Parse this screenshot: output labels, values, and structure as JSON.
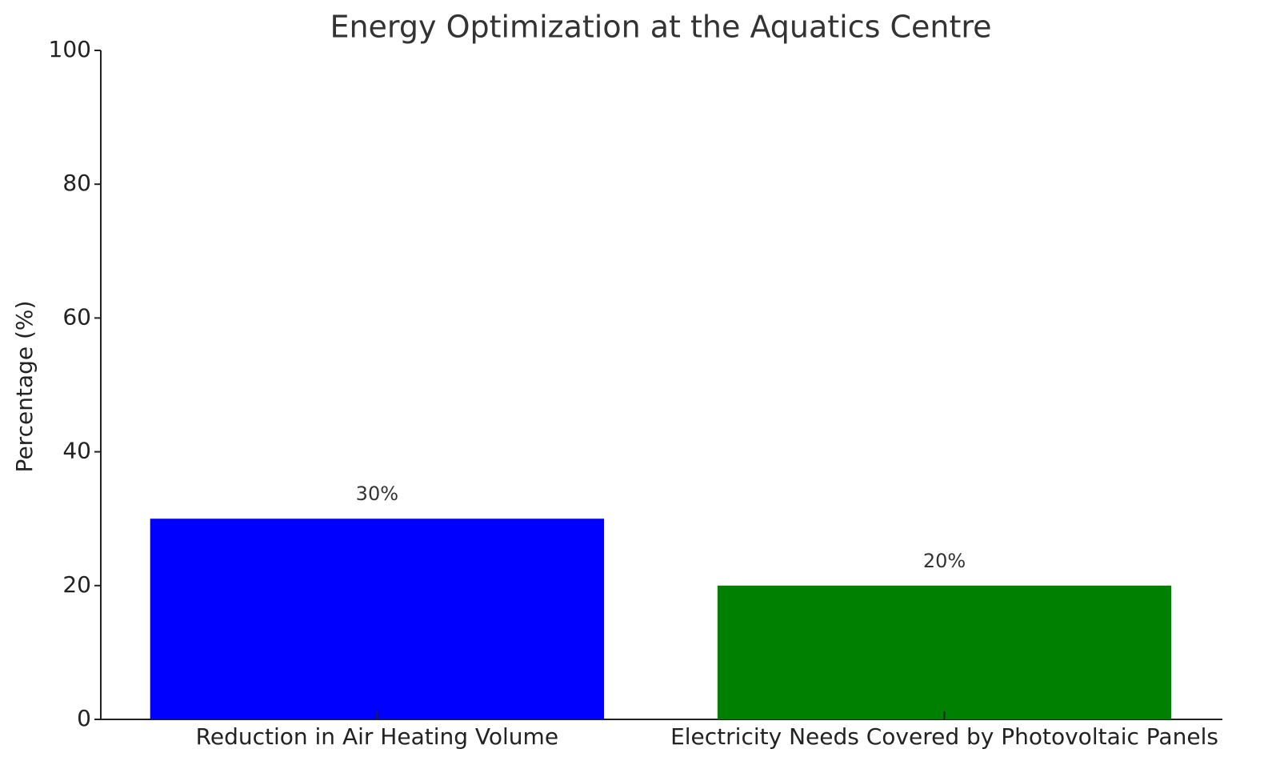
{
  "chart_data": {
    "type": "bar",
    "title": "Energy Optimization at the Aquatics Centre",
    "ylabel": "Percentage (%)",
    "categories": [
      "Reduction in Air Heating Volume",
      "Electricity Needs Covered by Photovoltaic Panels"
    ],
    "values": [
      30,
      20
    ],
    "value_labels": [
      "30%",
      "20%"
    ],
    "colors": [
      "#0000ff",
      "#008000"
    ],
    "ylim": [
      0,
      100
    ],
    "yticks": [
      0,
      20,
      40,
      60,
      80,
      100
    ],
    "grid": false
  }
}
